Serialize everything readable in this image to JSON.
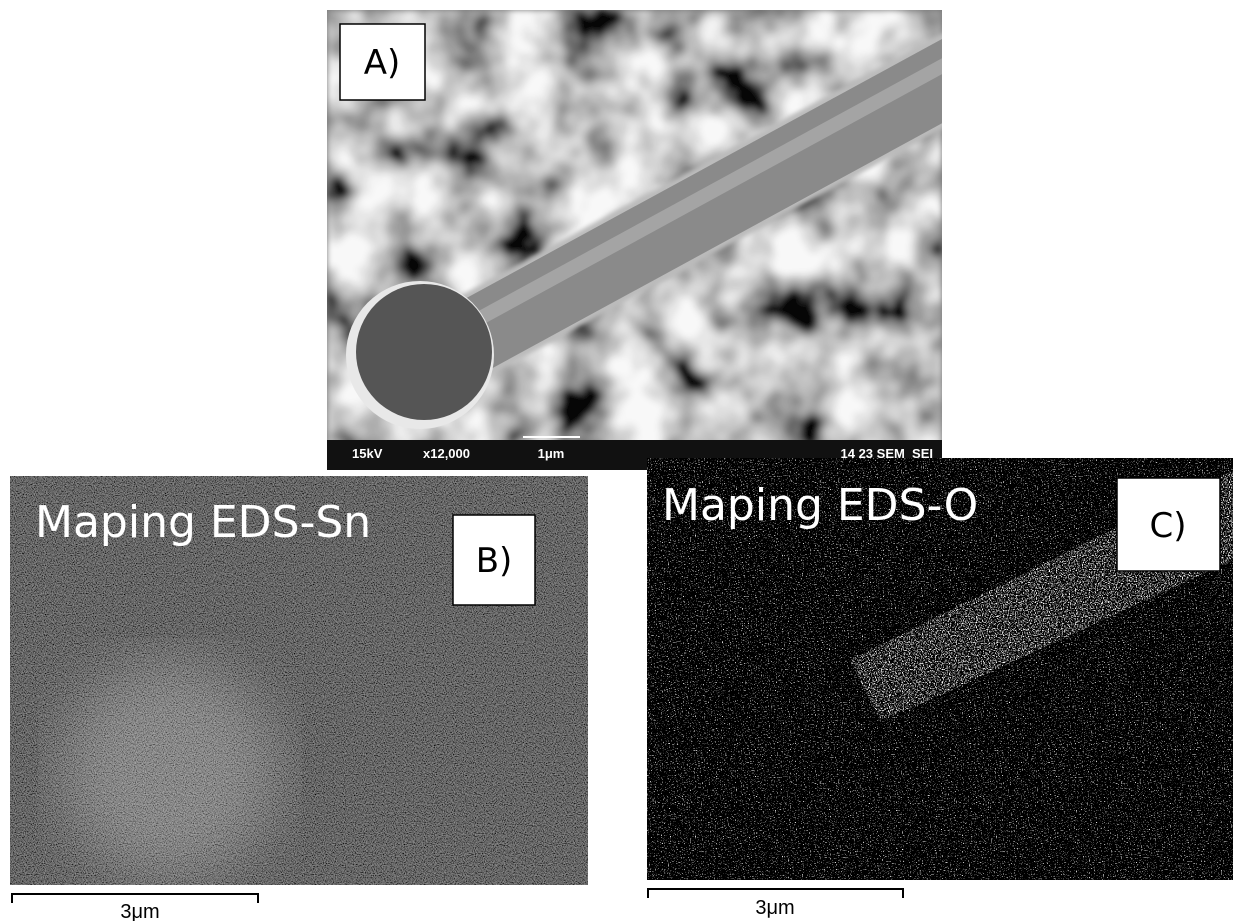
{
  "panels": [
    {
      "label": "A)",
      "info": {
        "voltage": "15kV",
        "magnification": "x12,000",
        "scale": "1μm",
        "code": "14 23 SEM_SEI"
      }
    },
    {
      "label": "B)",
      "title": "Maping EDS-Sn",
      "scale": "3μm"
    },
    {
      "label": "C)",
      "title": "Maping EDS-O",
      "scale": "3μm"
    }
  ]
}
